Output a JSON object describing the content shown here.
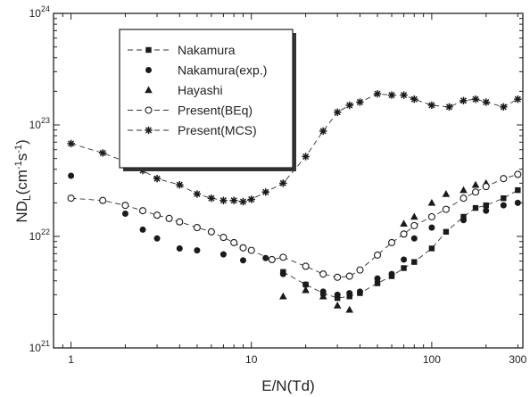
{
  "chart_data": {
    "type": "scatter",
    "xlabel": "E/N(Td)",
    "ylabel_main": "ND",
    "ylabel_sub": "L",
    "ylabel_tail": "(cm",
    "ylabel_exp1": "-1",
    "ylabel_mid": "s",
    "ylabel_exp2": "-1",
    "ylabel_close": ")",
    "x_scale": "log",
    "y_scale": "log",
    "xlim": [
      0.8,
      320
    ],
    "ylim": [
      1e+21,
      1e+24
    ],
    "x_tick_labels": [
      {
        "value": 1,
        "label": "1"
      },
      {
        "value": 10,
        "label": "10"
      },
      {
        "value": 100,
        "label": "100"
      },
      {
        "value": 300,
        "label": "300"
      }
    ],
    "y_ticks": [
      {
        "value": 1e+21,
        "base": "10",
        "exp": "21"
      },
      {
        "value": 1e+22,
        "base": "10",
        "exp": "22"
      },
      {
        "value": 1e+23,
        "base": "10",
        "exp": "23"
      },
      {
        "value": 1e+24,
        "base": "10",
        "exp": "24"
      }
    ],
    "grid": false,
    "legend_position": "top-left",
    "series": [
      {
        "name": "Nakamura",
        "marker": "square-filled",
        "line": "dash",
        "points": [
          [
            15,
            4.8e+21
          ],
          [
            20,
            3.7e+21
          ],
          [
            25,
            3.1e+21
          ],
          [
            30,
            2.8e+21
          ],
          [
            35,
            2.9e+21
          ],
          [
            40,
            3.1e+21
          ],
          [
            50,
            3.8e+21
          ],
          [
            60,
            4.4e+21
          ],
          [
            70,
            5.2e+21
          ],
          [
            80,
            5.9e+21
          ],
          [
            100,
            7.8e+21
          ],
          [
            120,
            1.1e+22
          ],
          [
            150,
            1.5e+22
          ],
          [
            175,
            1.8e+22
          ],
          [
            200,
            1.9e+22
          ],
          [
            250,
            2.2e+22
          ],
          [
            300,
            2.6e+22
          ]
        ]
      },
      {
        "name": "Nakamura(exp.)",
        "marker": "circle-filled",
        "line": "none",
        "points": [
          [
            1,
            3.5e+22
          ],
          [
            2,
            1.6e+22
          ],
          [
            2.5,
            1.15e+22
          ],
          [
            3,
            9.6e+21
          ],
          [
            4,
            7.8e+21
          ],
          [
            5,
            7.5e+21
          ],
          [
            7,
            6.9e+21
          ],
          [
            9,
            6.1e+21
          ],
          [
            12,
            6.4e+21
          ],
          [
            15,
            4.6e+21
          ],
          [
            20,
            3.7e+21
          ],
          [
            25,
            3.2e+21
          ],
          [
            30,
            3e+21
          ],
          [
            35,
            3.1e+21
          ],
          [
            40,
            3.2e+21
          ],
          [
            50,
            4.2e+21
          ],
          [
            60,
            4.6e+21
          ],
          [
            70,
            6.2e+21
          ],
          [
            80,
            9.6e+21
          ],
          [
            100,
            1.2e+22
          ],
          [
            150,
            1.4e+22
          ],
          [
            200,
            1.7e+22
          ],
          [
            250,
            1.9e+22
          ],
          [
            300,
            2e+22
          ]
        ]
      },
      {
        "name": "Hayashi",
        "marker": "triangle-filled",
        "line": "none",
        "points": [
          [
            15,
            2.9e+21
          ],
          [
            20,
            3.3e+21
          ],
          [
            25,
            2.9e+21
          ],
          [
            30,
            2.4e+21
          ],
          [
            35,
            2.2e+21
          ],
          [
            70,
            1.3e+22
          ],
          [
            80,
            1.5e+22
          ],
          [
            100,
            2e+22
          ],
          [
            120,
            2.4e+22
          ],
          [
            150,
            2.6e+22
          ],
          [
            175,
            2.9e+22
          ],
          [
            200,
            3e+22
          ]
        ]
      },
      {
        "name": "Present(BEq)",
        "marker": "circle-open",
        "line": "dash",
        "points": [
          [
            1,
            2.2e+22
          ],
          [
            1.5,
            2.1e+22
          ],
          [
            2,
            1.9e+22
          ],
          [
            2.5,
            1.7e+22
          ],
          [
            3,
            1.55e+22
          ],
          [
            3.5,
            1.45e+22
          ],
          [
            4,
            1.35e+22
          ],
          [
            5,
            1.2e+22
          ],
          [
            6,
            1.1e+22
          ],
          [
            7,
            9.8e+21
          ],
          [
            8,
            8.8e+21
          ],
          [
            9,
            7.9e+21
          ],
          [
            10,
            7.5e+21
          ],
          [
            13,
            6.2e+21
          ],
          [
            15,
            6.5e+21
          ],
          [
            20,
            5.4e+21
          ],
          [
            25,
            4.6e+21
          ],
          [
            30,
            4.3e+21
          ],
          [
            35,
            4.4e+21
          ],
          [
            40,
            5e+21
          ],
          [
            50,
            6.8e+21
          ],
          [
            60,
            8.8e+21
          ],
          [
            70,
            1.05e+22
          ],
          [
            80,
            1.25e+22
          ],
          [
            100,
            1.5e+22
          ],
          [
            120,
            1.75e+22
          ],
          [
            150,
            2.2e+22
          ],
          [
            175,
            2.5e+22
          ],
          [
            200,
            2.8e+22
          ],
          [
            250,
            3.3e+22
          ],
          [
            300,
            3.6e+22
          ]
        ]
      },
      {
        "name": "Present(MCS)",
        "marker": "asterisk",
        "line": "dash",
        "points": [
          [
            1,
            6.8e+22
          ],
          [
            1.5,
            5.6e+22
          ],
          [
            2,
            4.7e+22
          ],
          [
            2.5,
            3.9e+22
          ],
          [
            3,
            3.3e+22
          ],
          [
            4,
            2.9e+22
          ],
          [
            5,
            2.4e+22
          ],
          [
            6,
            2.2e+22
          ],
          [
            7,
            2.1e+22
          ],
          [
            8,
            2.1e+22
          ],
          [
            9,
            2.05e+22
          ],
          [
            10,
            2.15e+22
          ],
          [
            12,
            2.5e+22
          ],
          [
            15,
            3e+22
          ],
          [
            20,
            5.2e+22
          ],
          [
            25,
            8.8e+22
          ],
          [
            30,
            1.3e+23
          ],
          [
            35,
            1.5e+23
          ],
          [
            40,
            1.6e+23
          ],
          [
            50,
            1.9e+23
          ],
          [
            60,
            1.85e+23
          ],
          [
            70,
            1.85e+23
          ],
          [
            80,
            1.7e+23
          ],
          [
            100,
            1.5e+23
          ],
          [
            125,
            1.45e+23
          ],
          [
            150,
            1.65e+23
          ],
          [
            175,
            1.7e+23
          ],
          [
            200,
            1.6e+23
          ],
          [
            250,
            1.45e+23
          ],
          [
            300,
            1.7e+23
          ]
        ]
      }
    ]
  }
}
